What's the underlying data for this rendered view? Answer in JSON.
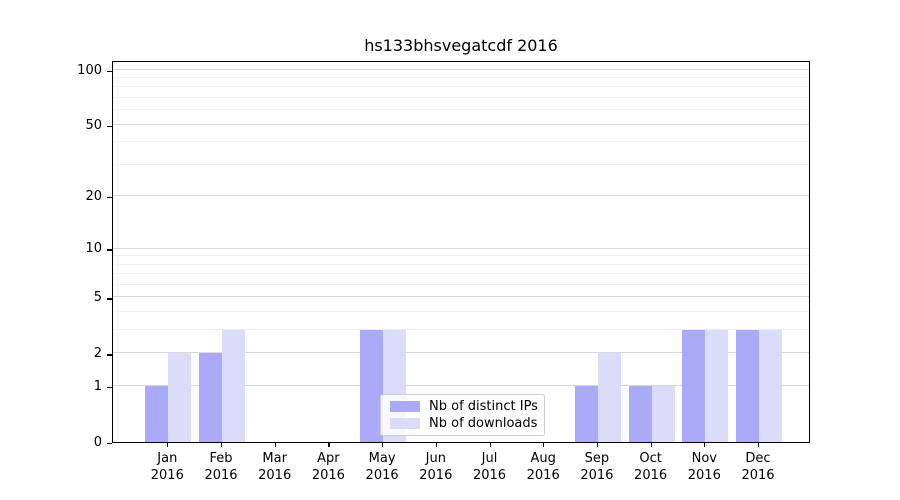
{
  "title": "hs133bhsvegatcdf 2016",
  "chart_data": {
    "type": "bar",
    "title": "hs133bhsvegatcdf 2016",
    "categories": [
      "Jan 2016",
      "Feb 2016",
      "Mar 2016",
      "Apr 2016",
      "May 2016",
      "Jun 2016",
      "Jul 2016",
      "Aug 2016",
      "Sep 2016",
      "Oct 2016",
      "Nov 2016",
      "Dec 2016"
    ],
    "x_months": [
      "Jan",
      "Feb",
      "Mar",
      "Apr",
      "May",
      "Jun",
      "Jul",
      "Aug",
      "Sep",
      "Oct",
      "Nov",
      "Dec"
    ],
    "x_year": "2016",
    "series": [
      {
        "name": "Nb of distinct IPs",
        "color": "#aaaaf8",
        "values": [
          1,
          2,
          0,
          0,
          3,
          0,
          0,
          0,
          1,
          1,
          3,
          3
        ]
      },
      {
        "name": "Nb of downloads",
        "color": "#dbdbfa",
        "values": [
          2,
          3,
          0,
          0,
          3,
          0,
          0,
          0,
          2,
          1,
          3,
          3
        ]
      }
    ],
    "xlabel": "",
    "ylabel": "",
    "yscale": "log1p",
    "ylim": [
      0,
      100
    ],
    "y_ticks": [
      100,
      50,
      20,
      10,
      5,
      2,
      1,
      0
    ],
    "y_minor_ticks": [
      3,
      4,
      6,
      7,
      8,
      9,
      30,
      40,
      60,
      70,
      80,
      90
    ],
    "grid": "horizontal",
    "legend_position": "inside-bottom-center"
  },
  "legend": {
    "items": [
      {
        "label": "Nb of distinct IPs",
        "color": "#aaaaf8"
      },
      {
        "label": "Nb of downloads",
        "color": "#dbdbfa"
      }
    ]
  },
  "colors": {
    "bar_dark": "#aaaaf8",
    "bar_light": "#dbdbfa",
    "grid_major": "#d9d9d9",
    "grid_minor": "#efefef",
    "axis": "#000000",
    "legend_border": "#cccccc"
  }
}
